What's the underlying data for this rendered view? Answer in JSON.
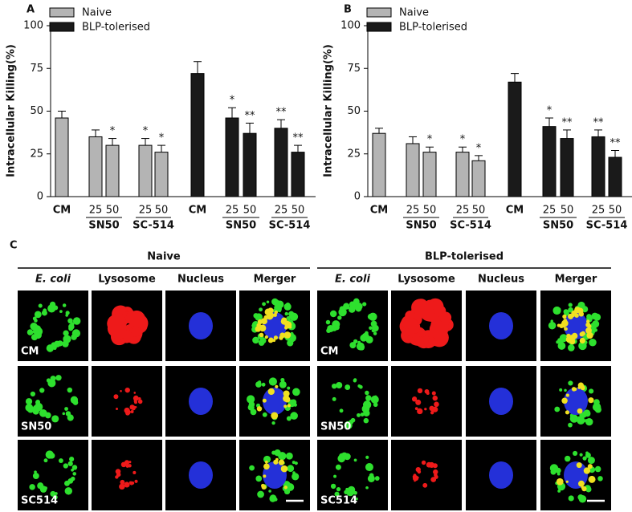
{
  "chart_data": [
    {
      "type": "bar",
      "panel": "A",
      "y_label": "Intracellular Killing(%)",
      "ylim": [
        0,
        100
      ],
      "yticks": [
        0,
        25,
        50,
        75,
        100
      ],
      "categories": [
        "CM",
        "25",
        "50",
        "25",
        "50",
        "CM",
        "25",
        "50",
        "25",
        "50"
      ],
      "groups": [
        {
          "label": null,
          "size": 1
        },
        {
          "label": "SN50",
          "size": 2
        },
        {
          "label": "SC-514",
          "size": 2
        },
        {
          "label": null,
          "size": 1
        },
        {
          "label": "SN50",
          "size": 2
        },
        {
          "label": "SC-514",
          "size": 2
        }
      ],
      "series": [
        {
          "name": "Naive",
          "color": "#b4b4b4",
          "values": [
            46,
            35,
            30,
            30,
            26,
            null,
            null,
            null,
            null,
            null
          ],
          "errors": [
            4,
            4,
            4,
            4,
            4,
            null,
            null,
            null,
            null,
            null
          ],
          "significance": [
            null,
            null,
            "*",
            "*",
            "*",
            null,
            null,
            null,
            null,
            null
          ]
        },
        {
          "name": "BLP-tolerised",
          "color": "#1a1a1a",
          "values": [
            null,
            null,
            null,
            null,
            null,
            72,
            46,
            37,
            40,
            26
          ],
          "errors": [
            null,
            null,
            null,
            null,
            null,
            7,
            6,
            6,
            5,
            4
          ],
          "significance": [
            null,
            null,
            null,
            null,
            null,
            null,
            "*",
            "**",
            "**",
            "**"
          ]
        }
      ]
    },
    {
      "type": "bar",
      "panel": "B",
      "y_label": "Intracellular Killing(%)",
      "ylim": [
        0,
        100
      ],
      "yticks": [
        0,
        25,
        50,
        75,
        100
      ],
      "categories": [
        "CM",
        "25",
        "50",
        "25",
        "50",
        "CM",
        "25",
        "50",
        "25",
        "50"
      ],
      "groups": [
        {
          "label": null,
          "size": 1
        },
        {
          "label": "SN50",
          "size": 2
        },
        {
          "label": "SC-514",
          "size": 2
        },
        {
          "label": null,
          "size": 1
        },
        {
          "label": "SN50",
          "size": 2
        },
        {
          "label": "SC-514",
          "size": 2
        }
      ],
      "series": [
        {
          "name": "Naive",
          "color": "#b4b4b4",
          "values": [
            37,
            31,
            26,
            26,
            21,
            null,
            null,
            null,
            null,
            null
          ],
          "errors": [
            3,
            4,
            3,
            3,
            3,
            null,
            null,
            null,
            null,
            null
          ],
          "significance": [
            null,
            null,
            "*",
            "*",
            "*",
            null,
            null,
            null,
            null,
            null
          ]
        },
        {
          "name": "BLP-tolerised",
          "color": "#1a1a1a",
          "values": [
            null,
            null,
            null,
            null,
            null,
            67,
            41,
            34,
            35,
            23
          ],
          "errors": [
            null,
            null,
            null,
            null,
            null,
            5,
            5,
            5,
            4,
            4
          ],
          "significance": [
            null,
            null,
            null,
            null,
            null,
            null,
            "*",
            "**",
            "**",
            "**"
          ]
        }
      ]
    }
  ],
  "panel_c": {
    "label": "C",
    "groups": [
      {
        "title": "Naive",
        "columns": [
          "E. coli",
          "Lysosome",
          "Nucleus",
          "Merger"
        ]
      },
      {
        "title": "BLP-tolerised",
        "columns": [
          "E. coli",
          "Lysosome",
          "Nucleus",
          "Merger"
        ]
      }
    ],
    "rows": [
      "CM",
      "SN50",
      "SC514"
    ]
  }
}
